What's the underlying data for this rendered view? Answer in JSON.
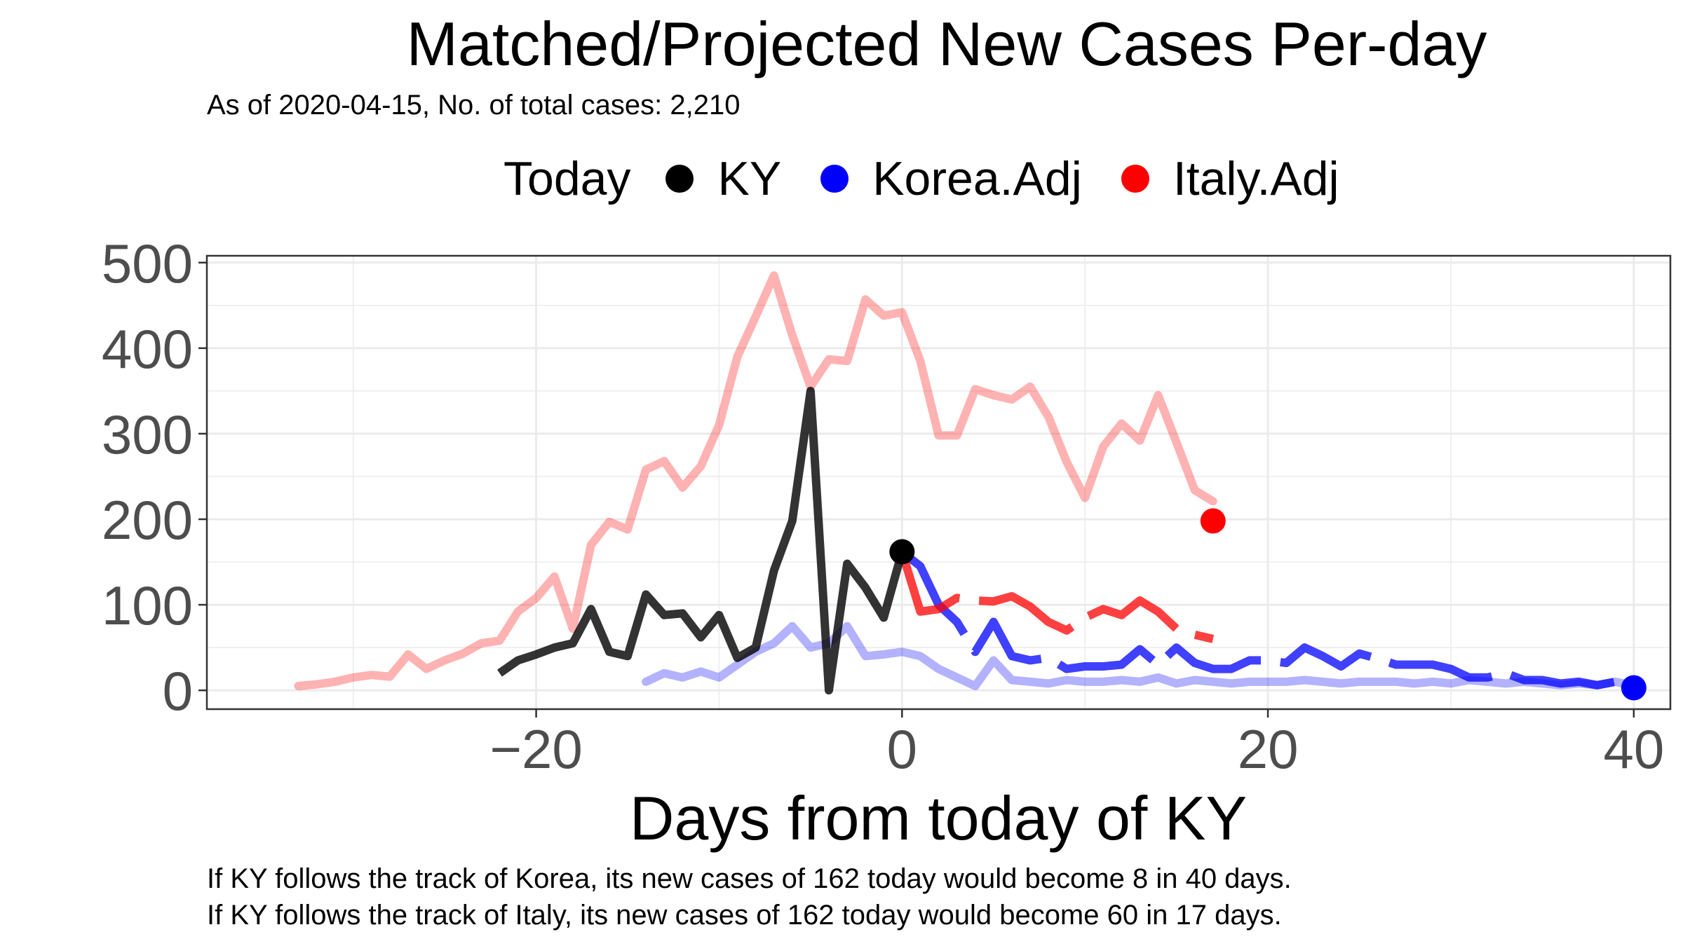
{
  "chart_data": {
    "type": "line",
    "title": "Matched/Projected New Cases Per-day",
    "subtitle": "As of 2020-04-15, No. of total cases: 2,210",
    "xlabel": "Days from today of KY",
    "ylabel": "",
    "xlim": [
      -38,
      42
    ],
    "ylim": [
      -22,
      508
    ],
    "x_ticks": [
      -20,
      0,
      20,
      40
    ],
    "y_ticks": [
      0,
      100,
      200,
      300,
      400,
      500
    ],
    "grid": true,
    "legend": {
      "title": "Today",
      "position": "top",
      "entries": [
        {
          "label": "KY",
          "color": "#000000"
        },
        {
          "label": "Korea.Adj",
          "color": "#0000ff"
        },
        {
          "label": "Italy.Adj",
          "color": "#ff0000"
        }
      ]
    },
    "series": [
      {
        "name": "Italy.Adj",
        "color": "#ff0000",
        "x": [
          -33,
          -32,
          -31,
          -30,
          -29,
          -28,
          -27,
          -26,
          -25,
          -24,
          -23,
          -22,
          -21,
          -20,
          -19,
          -18,
          -17,
          -16,
          -15,
          -14,
          -13,
          -12,
          -11,
          -10,
          -9,
          -8,
          -7,
          -6,
          -5,
          -4,
          -3,
          -2,
          -1,
          0,
          1,
          2,
          3,
          4,
          5,
          6,
          7,
          8,
          9,
          10,
          11,
          12,
          13,
          14,
          15,
          16,
          17
        ],
        "y": [
          5,
          7,
          10,
          15,
          18,
          16,
          42,
          25,
          35,
          43,
          55,
          58,
          92,
          108,
          133,
          72,
          170,
          197,
          188,
          258,
          268,
          237,
          262,
          310,
          390,
          437,
          485,
          415,
          355,
          387,
          385,
          457,
          438,
          442,
          385,
          298,
          298,
          352,
          345,
          340,
          355,
          320,
          267,
          225,
          285,
          312,
          292,
          345,
          290,
          234,
          221
        ],
        "past_until_x": 0,
        "end_point": {
          "x": 17,
          "y": 198
        }
      },
      {
        "name": "Korea.Adj",
        "color": "#0000ff",
        "x": [
          -14,
          -13,
          -12,
          -11,
          -10,
          -9,
          -8,
          -7,
          -6,
          -5,
          -4,
          -3,
          -2,
          -1,
          0,
          1,
          2,
          3,
          4,
          5,
          6,
          7,
          8,
          9,
          10,
          11,
          12,
          13,
          14,
          15,
          16,
          17,
          18,
          19,
          20,
          21,
          22,
          23,
          24,
          25,
          26,
          27,
          28,
          29,
          30,
          31,
          32,
          33,
          34,
          35,
          36,
          37,
          38,
          39,
          40
        ],
        "y": [
          10,
          20,
          15,
          22,
          15,
          30,
          45,
          55,
          75,
          50,
          55,
          75,
          40,
          42,
          45,
          40,
          25,
          15,
          5,
          35,
          12,
          10,
          8,
          12,
          10,
          10,
          12,
          10,
          15,
          8,
          12,
          10,
          8,
          10,
          10,
          10,
          12,
          10,
          8,
          10,
          10,
          10,
          8,
          10,
          8,
          12,
          10,
          8,
          10,
          8,
          6,
          8,
          6,
          10,
          5
        ],
        "past_until_x": 0,
        "future": {
          "x": [
            0,
            1,
            2,
            3,
            4,
            5,
            6,
            7,
            8,
            9,
            10,
            11,
            12,
            13,
            14,
            15,
            16,
            17,
            18,
            19,
            20,
            21,
            22,
            23,
            24,
            25,
            26,
            27,
            28,
            29,
            30,
            31,
            32,
            33,
            34,
            35,
            36,
            37,
            38,
            39,
            40
          ],
          "y": [
            162,
            145,
            100,
            80,
            45,
            80,
            40,
            35,
            38,
            25,
            28,
            28,
            30,
            48,
            30,
            50,
            32,
            25,
            25,
            35,
            35,
            32,
            50,
            40,
            28,
            43,
            37,
            30,
            30,
            30,
            25,
            15,
            15,
            20,
            12,
            12,
            8,
            10,
            6,
            10,
            8
          ]
        },
        "end_point": {
          "x": 40,
          "y": 3
        }
      },
      {
        "name": "KY",
        "color": "#000000",
        "x": [
          -22,
          -21,
          -20,
          -19,
          -18,
          -17,
          -16,
          -15,
          -14,
          -13,
          -12,
          -11,
          -10,
          -9,
          -8,
          -7,
          -6,
          -5,
          -4,
          -3,
          -2,
          -1,
          0
        ],
        "y": [
          20,
          35,
          42,
          50,
          55,
          95,
          45,
          40,
          112,
          88,
          90,
          62,
          88,
          38,
          50,
          140,
          198,
          350,
          0,
          148,
          120,
          85,
          162
        ],
        "end_point": {
          "x": 0,
          "y": 162
        }
      },
      {
        "name": "Italy.Adj projected",
        "color": "#ff0000",
        "x": [
          0,
          1,
          2,
          3,
          4,
          5,
          6,
          7,
          8,
          9,
          10,
          11,
          12,
          13,
          14,
          15,
          16,
          17
        ],
        "y": [
          162,
          92,
          95,
          108,
          105,
          104,
          110,
          98,
          80,
          70,
          85,
          95,
          88,
          105,
          92,
          72,
          65,
          60
        ]
      }
    ]
  },
  "caption": {
    "line1": "If KY follows the track of Korea, its new cases of 162 today would become 8 in 40 days.",
    "line2": "If KY follows the track of Italy, its new cases of 162 today would become 60 in 17 days."
  }
}
